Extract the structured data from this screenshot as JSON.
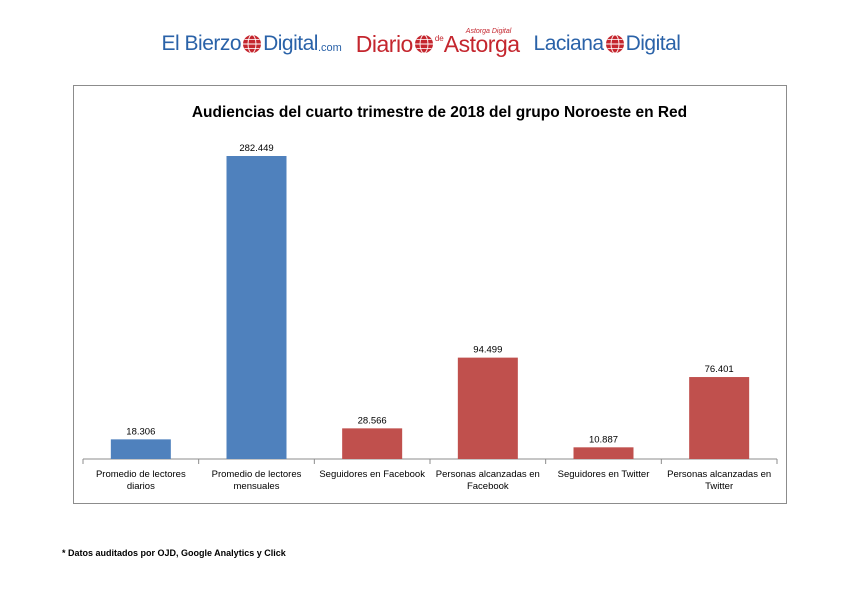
{
  "logos": [
    {
      "name": "El Bierzo Digital",
      "part_a": "El Bierzo",
      "part_b": "Digital",
      "part_c": ".com"
    },
    {
      "name": "Diario de Astorga",
      "part_a": "Diario",
      "part_de": "de",
      "part_b": "Astorga",
      "tagline": "Astorga Digital"
    },
    {
      "name": "Laciana Digital",
      "part_a": "Laciana",
      "part_b": "Digital"
    }
  ],
  "colors": {
    "blue": "#4f81bd",
    "red": "#c0504d",
    "axis": "#8c8c8c",
    "logo_blue": "#2a62a8",
    "logo_red": "#c4262e"
  },
  "chart_data": {
    "type": "bar",
    "title": "Audiencias del cuarto trimestre de 2018 del grupo Noroeste en Red",
    "categories": [
      "Promedio de lectores diarios",
      "Promedio de lectores mensuales",
      "Seguidores en Facebook",
      "Personas alcanzadas en Facebook",
      "Seguidores en Twitter",
      "Personas alcanzadas en Twitter"
    ],
    "values": [
      18306,
      282449,
      28566,
      94499,
      10887,
      76401
    ],
    "value_labels": [
      "18.306",
      "282.449",
      "28.566",
      "94.499",
      "10.887",
      "76.401"
    ],
    "bar_colors": [
      "#4f81bd",
      "#4f81bd",
      "#c0504d",
      "#c0504d",
      "#c0504d",
      "#c0504d"
    ],
    "ylim": [
      0,
      282449
    ],
    "xlabel": "",
    "ylabel": "",
    "grid": false,
    "legend": "none"
  },
  "footnote": "* Datos auditados por OJD, Google Analytics y Click"
}
